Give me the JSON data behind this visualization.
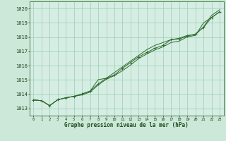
{
  "x": [
    0,
    1,
    2,
    3,
    4,
    5,
    6,
    7,
    8,
    9,
    10,
    11,
    12,
    13,
    14,
    15,
    16,
    17,
    18,
    19,
    20,
    21,
    22,
    23
  ],
  "line1": [
    1013.6,
    1013.55,
    1013.2,
    1013.6,
    1013.75,
    1013.85,
    1013.95,
    1014.15,
    1014.65,
    1015.05,
    1015.3,
    1015.65,
    1016.05,
    1016.5,
    1016.82,
    1017.1,
    1017.32,
    1017.62,
    1017.72,
    1018.02,
    1018.12,
    1019.0,
    1019.38,
    1019.78
  ],
  "line2": [
    1013.6,
    1013.55,
    1013.2,
    1013.62,
    1013.75,
    1013.85,
    1014.02,
    1014.22,
    1014.72,
    1015.12,
    1015.35,
    1015.82,
    1016.22,
    1016.62,
    1016.92,
    1017.22,
    1017.42,
    1017.82,
    1017.87,
    1018.07,
    1018.22,
    1018.67,
    1019.37,
    1019.77
  ],
  "line3": [
    1013.6,
    1013.55,
    1013.2,
    1013.62,
    1013.75,
    1013.85,
    1014.02,
    1014.22,
    1015.02,
    1015.12,
    1015.52,
    1015.92,
    1016.32,
    1016.72,
    1017.12,
    1017.42,
    1017.62,
    1017.82,
    1017.92,
    1018.12,
    1018.17,
    1018.72,
    1019.52,
    1019.92
  ],
  "line_color": "#2d6a2d",
  "marker_color": "#2d6a2d",
  "bg_color": "#cce8d8",
  "grid_color": "#99ccb3",
  "xlabel": "Graphe pression niveau de la mer (hPa)",
  "xlabel_color": "#1a4a1a",
  "ylabel_ticks": [
    1013,
    1014,
    1015,
    1016,
    1017,
    1018,
    1019,
    1020
  ],
  "xlim": [
    -0.5,
    23.5
  ],
  "ylim": [
    1012.5,
    1020.5
  ],
  "tick_color": "#1a3a1a",
  "axis_color": "#2d6a2d",
  "plot_bg": "#d6ede3"
}
